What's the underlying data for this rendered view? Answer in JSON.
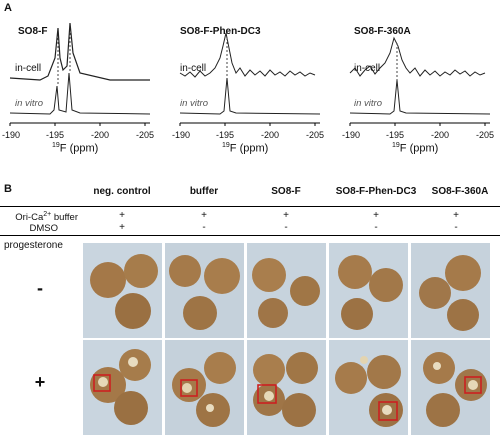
{
  "panel_a": {
    "letter": "A",
    "spectra": [
      {
        "title": "SO8-F",
        "upper_label": "in-cell",
        "lower_label": "in vitro",
        "peaks_upper": [
          -194.6,
          -196.7
        ],
        "peaks_lower": [
          -194.6,
          -196.7
        ]
      },
      {
        "title": "SO8-F-Phen-DC3",
        "upper_label": "in-cell",
        "lower_label": "in vitro",
        "peaks_upper": [
          -195.0
        ],
        "peaks_lower": [
          -195.0
        ]
      },
      {
        "title": "SO8-F-360A",
        "upper_label": "in-cell",
        "lower_label": "in vitro",
        "peaks_upper": [
          -195.1
        ],
        "peaks_lower": [
          -195.1
        ]
      }
    ],
    "axis_ticks": [
      "-190",
      "-195",
      "-200",
      "-205"
    ],
    "xlabel_sup": "19",
    "xlabel_rest": "F (ppm)"
  },
  "panel_b": {
    "letter": "B",
    "columns": [
      "neg. control",
      "buffer",
      "SO8-F",
      "SO8-F-Phen-DC3",
      "SO8-F-360A"
    ],
    "row1_label_pre": "Ori-Ca",
    "row1_label_sup": "2+",
    "row1_label_post": " buffer",
    "row2_label": "DMSO",
    "row1_values": [
      "+",
      "+",
      "+",
      "+",
      "+"
    ],
    "row2_values": [
      "+",
      "-",
      "-",
      "-",
      "-"
    ],
    "progesterone_label": "progesterone",
    "minus_sign": "-",
    "plus_sign": "+"
  },
  "colors": {
    "spectrum_line": "#1a1a1a",
    "background_photo": "#c8d4de",
    "egg": "#a57a4a",
    "highlight_box": "#cc2020"
  }
}
